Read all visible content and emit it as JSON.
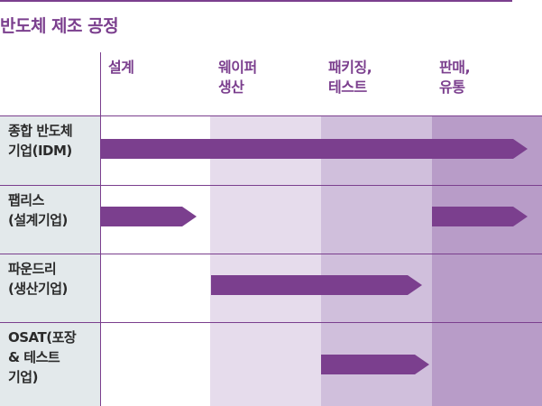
{
  "title": "반도체 제조 공정",
  "columns": [
    {
      "lines": [
        "설계"
      ]
    },
    {
      "lines": [
        "웨이퍼",
        "생산"
      ]
    },
    {
      "lines": [
        "패키징,",
        "테스트"
      ]
    },
    {
      "lines": [
        "판매,",
        "유통"
      ]
    }
  ],
  "rows": [
    {
      "lines": [
        "종합 반도체",
        "기업(IDM)"
      ]
    },
    {
      "lines": [
        "팹리스",
        "(설계기업)"
      ]
    },
    {
      "lines": [
        "파운드리",
        "(생산기업)"
      ]
    },
    {
      "lines": [
        "OSAT(포장",
        "& 테스트",
        "기업)"
      ]
    }
  ],
  "colors": {
    "accent": "#7b3f8e",
    "row_header_bg": "#e3e9eb",
    "col_shades": [
      "#ffffff",
      "#e6dcec",
      "#d0bfdc",
      "#b89cc8"
    ]
  }
}
